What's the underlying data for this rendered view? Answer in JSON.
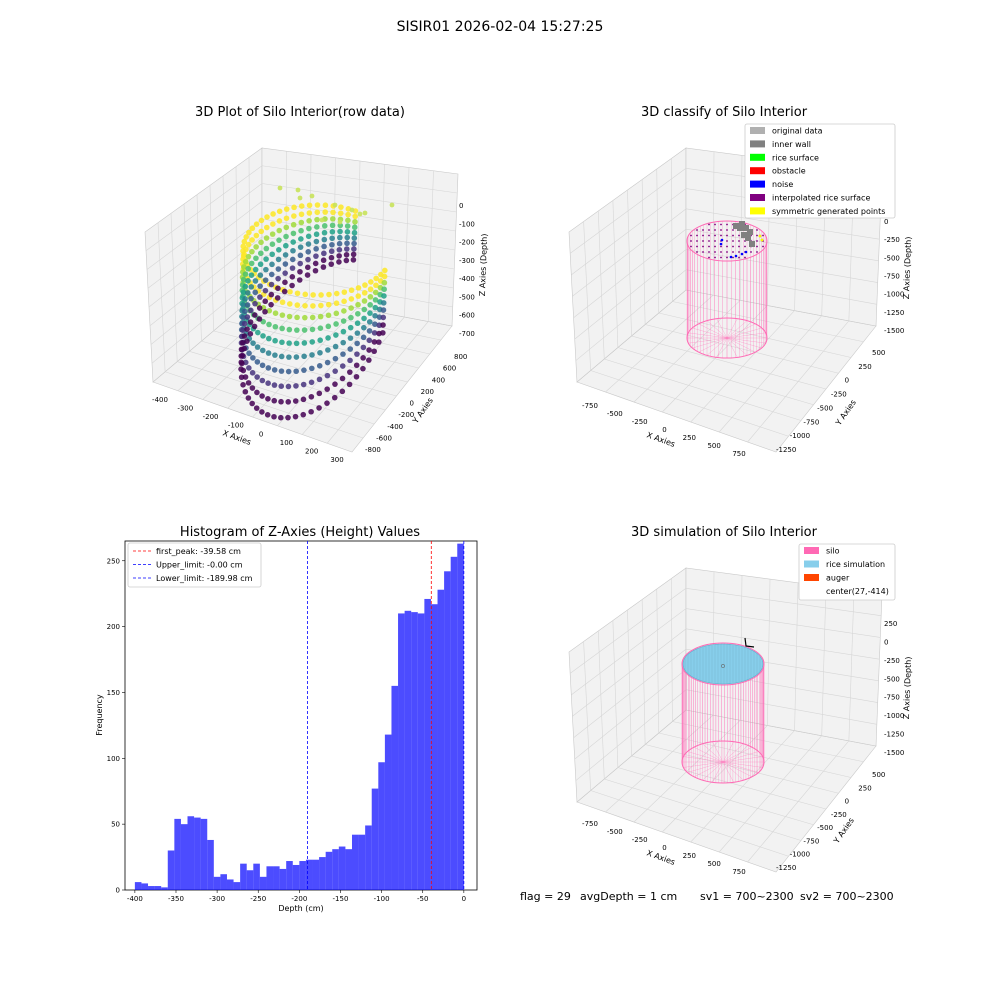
{
  "figure": {
    "suptitle": "SISIR01 2026-02-04 15:27:25",
    "status": {
      "flag": "flag = 29",
      "avg_depth": "avgDepth = 1 cm",
      "sv1": "sv1 = 700~2300",
      "sv2": "sv2 = 700~2300"
    }
  },
  "chart_data": [
    {
      "type": "scatter",
      "subtype": "3d",
      "title": "3D Plot of Silo Interior(row data)",
      "xlabel": "X Axies",
      "ylabel": "Y Axies",
      "zlabel": "Z Axies (Depth)",
      "xticks": [
        "-400",
        "-300",
        "-200",
        "-100",
        "0",
        "100",
        "200",
        "300"
      ],
      "yticks": [
        "-800",
        "-600",
        "-400",
        "-200",
        "0",
        "200",
        "400",
        "600",
        "800"
      ],
      "zticks": [
        "0",
        "-100",
        "-200",
        "-300",
        "-400",
        "-500",
        "-600",
        "-700"
      ],
      "xlim": [
        -420,
        320
      ],
      "ylim": [
        -850,
        850
      ],
      "zlim": [
        -730,
        30
      ],
      "colormap": "viridis",
      "grid": true,
      "series": [
        {
          "values": [
            {
              "x": -360,
              "y": 520,
              "z": -10
            },
            {
              "x": -380,
              "y": 300,
              "z": -30
            },
            {
              "x": -390,
              "y": 0,
              "z": -50
            },
            {
              "x": -370,
              "y": -300,
              "z": -80
            },
            {
              "x": -330,
              "y": -550,
              "z": -120
            },
            {
              "x": -250,
              "y": -700,
              "z": -180
            },
            {
              "x": -120,
              "y": -760,
              "z": -250
            },
            {
              "x": 20,
              "y": -720,
              "z": -320
            },
            {
              "x": 140,
              "y": -600,
              "z": -380
            },
            {
              "x": 220,
              "y": -420,
              "z": -440
            },
            {
              "x": 260,
              "y": -200,
              "z": -500
            },
            {
              "x": 250,
              "y": 50,
              "z": -560
            },
            {
              "x": 200,
              "y": 300,
              "z": -620
            },
            {
              "x": 130,
              "y": 480,
              "z": -670
            },
            {
              "x": 60,
              "y": 600,
              "z": -700
            },
            {
              "x": -50,
              "y": 700,
              "z": -150
            },
            {
              "x": 100,
              "y": 650,
              "z": -120
            },
            {
              "x": 220,
              "y": 500,
              "z": -200
            }
          ]
        }
      ]
    },
    {
      "type": "scatter",
      "subtype": "3d",
      "title": "3D classify of Silo Interior",
      "xlabel": "X Axies",
      "ylabel": "Y Axies",
      "zlabel": "Z Axies (Depth)",
      "xticks": [
        "-750",
        "-500",
        "-250",
        "0",
        "250",
        "500",
        "750"
      ],
      "yticks": [
        "-1250",
        "-1000",
        "-750",
        "-500",
        "-250",
        "0",
        "250",
        "500"
      ],
      "zticks": [
        "0",
        "-250",
        "-500",
        "-750",
        "-1000",
        "-1250",
        "-1500"
      ],
      "xlim": [
        -850,
        850
      ],
      "ylim": [
        -1300,
        550
      ],
      "zlim": [
        -1550,
        100
      ],
      "grid": true,
      "legend": {
        "loc": "upper right",
        "entries": [
          {
            "label": "original data",
            "color": "#b0b0b0"
          },
          {
            "label": "inner wall",
            "color": "#808080"
          },
          {
            "label": "rice surface",
            "color": "#00ff00"
          },
          {
            "label": "obstacle",
            "color": "#ff0000"
          },
          {
            "label": "noise",
            "color": "#0000ff"
          },
          {
            "label": "interpolated rice surface",
            "color": "#800080"
          },
          {
            "label": "symmetric generated points",
            "color": "#ffff00"
          }
        ]
      },
      "silo": {
        "radius": 400,
        "top": 0,
        "bottom": -1500,
        "color": "#ff69b4"
      }
    },
    {
      "type": "bar",
      "subtype": "histogram",
      "title": "Histogram of Z-Axies (Height) Values",
      "xlabel": "Depth (cm)",
      "ylabel": "Frequency",
      "xlim": [
        -412,
        16
      ],
      "ylim": [
        0,
        265
      ],
      "xticks": [
        -400,
        -350,
        -300,
        -250,
        -200,
        -150,
        -100,
        -50,
        0
      ],
      "yticks": [
        0,
        50,
        100,
        150,
        200,
        250
      ],
      "bar_color": "#0000ff",
      "bin_width": 8,
      "bins": {
        "left_edges": [
          -400,
          -392,
          -384,
          -376,
          -368,
          -360,
          -352,
          -344,
          -336,
          -328,
          -320,
          -312,
          -304,
          -296,
          -288,
          -280,
          -272,
          -264,
          -256,
          -248,
          -240,
          -232,
          -224,
          -216,
          -208,
          -200,
          -192,
          -184,
          -176,
          -168,
          -160,
          -152,
          -144,
          -136,
          -128,
          -120,
          -112,
          -104,
          -96,
          -88,
          -80,
          -72,
          -64,
          -56,
          -48,
          -40,
          -32,
          -24,
          -16,
          -8
        ],
        "values": [
          6,
          5,
          3,
          3,
          2,
          30,
          54,
          50,
          56,
          55,
          54,
          38,
          10,
          12,
          8,
          6,
          20,
          15,
          20,
          10,
          18,
          18,
          16,
          22,
          19,
          22,
          23,
          23,
          25,
          29,
          31,
          33,
          31,
          42,
          42,
          49,
          77,
          97,
          118,
          155,
          210,
          212,
          211,
          210,
          221,
          217,
          228,
          242,
          253,
          263
        ]
      },
      "lines": [
        {
          "label": "first_peak: -39.58 cm",
          "x": -39.58,
          "color": "#ff0000"
        },
        {
          "label": "Upper_limit: -0.00 cm",
          "x": 0,
          "color": "#0000ff"
        },
        {
          "label": "Lower_limit: -189.98 cm",
          "x": -189.98,
          "color": "#0000ff"
        }
      ],
      "legend": "upper left"
    },
    {
      "type": "scatter",
      "subtype": "3d",
      "title": "3D simulation of Silo Interior",
      "xlabel": "X Axies",
      "ylabel": "Y Axies",
      "zlabel": "Z Axies (Depth)",
      "xticks": [
        "-750",
        "-500",
        "-250",
        "0",
        "250",
        "500",
        "750"
      ],
      "yticks": [
        "-1250",
        "-1000",
        "-750",
        "-500",
        "-250",
        "0",
        "250",
        "500"
      ],
      "zticks": [
        "250",
        "0",
        "-250",
        "-500",
        "-750",
        "-1000",
        "-1250",
        "-1500"
      ],
      "xlim": [
        -850,
        850
      ],
      "ylim": [
        -1300,
        550
      ],
      "zlim": [
        -1550,
        300
      ],
      "grid": true,
      "legend": {
        "loc": "upper right",
        "entries": [
          {
            "label": "silo",
            "color": "#ff69b4",
            "marker": "patch"
          },
          {
            "label": "rice simulation",
            "color": "#87ceeb",
            "marker": "patch"
          },
          {
            "label": "auger",
            "color": "#ff4500",
            "marker": "patch"
          },
          {
            "label": "center(27,-414)",
            "color": "",
            "marker": "none"
          }
        ]
      },
      "silo": {
        "radius": 400,
        "top": 0,
        "bottom": -1500,
        "color": "#ff69b4"
      },
      "rice_surface": {
        "depth": -1,
        "color": "#87ceeb"
      }
    }
  ]
}
